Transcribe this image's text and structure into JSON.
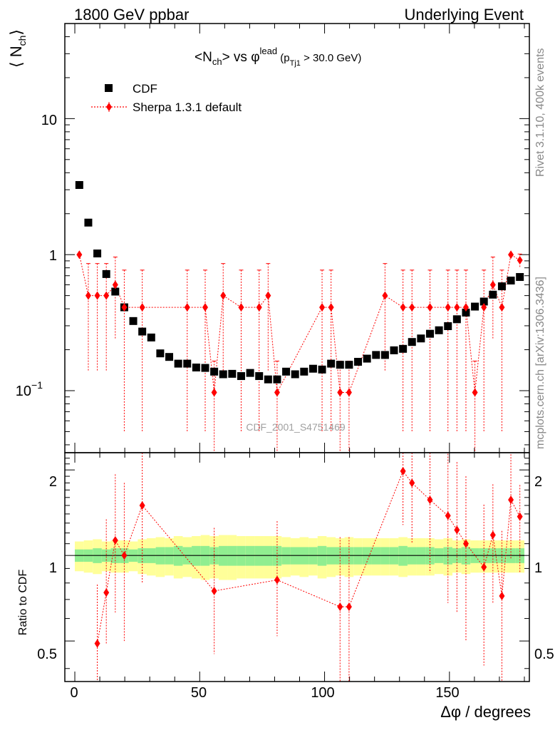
{
  "header": {
    "left": "1800 GeV ppbar",
    "right": "Underlying Event"
  },
  "side_labels": {
    "rivet": "Rivet 3.1.10,  400k events",
    "mcplots": "mcplots.cern.ch [arXiv:1306.3436]"
  },
  "watermark": "CDF_2001_S4751469",
  "chart_data": {
    "type": "scatter",
    "title_parts": {
      "lhs": "<N",
      "lhs_sub": "ch",
      "mid": "> vs φ",
      "mid_sup": "lead",
      "paren_open": " (p",
      "paren_sub": "Tj1",
      "paren_rest": " > 30.0 GeV)"
    },
    "ylabel_parts": {
      "main": "⟨ N",
      "sub": "ch",
      "close": "⟩"
    },
    "xlabel": "Δφ / degrees",
    "ratio_ylabel": "Ratio to CDF",
    "x_ticks": [
      "0",
      "50",
      "100",
      "150"
    ],
    "y_ticks": {
      "ten": "10",
      "one": "1",
      "tenth_base": "10",
      "tenth_exp": "−1"
    },
    "ratio_ticks": [
      "2",
      "1",
      "0.5"
    ],
    "xlim": [
      -4,
      182
    ],
    "ylim": [
      0.035,
      50
    ],
    "ylog": true,
    "ratio_ylim": [
      0.36,
      2.3
    ],
    "ratio_ylog": true,
    "bin_width": 3.6,
    "legend": [
      "CDF",
      "Sherpa 1.3.1 default"
    ],
    "legend_position": "top-left",
    "colors": {
      "cdf": "#000000",
      "mc": "#ff0000",
      "band_inner": "#90ee90",
      "band_outer": "#ffff99"
    },
    "cdf": {
      "x": [
        1.8,
        5.4,
        9.0,
        12.6,
        16.2,
        19.8,
        23.4,
        27.0,
        30.6,
        34.2,
        37.8,
        41.4,
        45.0,
        48.6,
        52.2,
        55.8,
        59.4,
        63.0,
        66.6,
        70.2,
        73.8,
        77.4,
        81.0,
        84.6,
        88.2,
        91.8,
        95.4,
        99.0,
        102.6,
        106.2,
        109.8,
        113.4,
        117.0,
        120.6,
        124.2,
        127.8,
        131.4,
        135.0,
        138.6,
        142.2,
        145.8,
        149.4,
        153.0,
        156.6,
        160.2,
        163.8,
        167.4,
        171.0,
        174.6,
        178.2
      ],
      "y": [
        3.25,
        1.72,
        1.02,
        0.72,
        0.535,
        0.41,
        0.325,
        0.272,
        0.246,
        0.188,
        0.177,
        0.158,
        0.158,
        0.148,
        0.147,
        0.138,
        0.132,
        0.133,
        0.128,
        0.135,
        0.128,
        0.121,
        0.121,
        0.138,
        0.132,
        0.138,
        0.145,
        0.143,
        0.158,
        0.155,
        0.155,
        0.163,
        0.172,
        0.183,
        0.183,
        0.198,
        0.203,
        0.228,
        0.242,
        0.262,
        0.278,
        0.298,
        0.335,
        0.375,
        0.415,
        0.452,
        0.508,
        0.585,
        0.645,
        0.685
      ]
    },
    "sherpa": {
      "x": [
        1.8,
        5.4,
        9.0,
        12.6,
        16.2,
        19.8,
        27.0,
        45.0,
        52.2,
        55.8,
        59.4,
        66.6,
        73.8,
        77.4,
        81.0,
        99.0,
        102.6,
        106.2,
        109.8,
        124.2,
        131.4,
        135.0,
        142.2,
        149.4,
        153.0,
        156.6,
        160.2,
        163.8,
        167.4,
        171.0,
        174.6,
        178.2
      ],
      "y": [
        1.0,
        0.5,
        0.5,
        0.5,
        0.6,
        0.41,
        0.41,
        0.41,
        0.41,
        0.097,
        0.5,
        0.41,
        0.41,
        0.5,
        0.097,
        0.41,
        0.41,
        0.097,
        0.097,
        0.5,
        0.41,
        0.41,
        0.41,
        0.41,
        0.41,
        0.41,
        0.097,
        0.41,
        0.6,
        0.41,
        1.0,
        0.91
      ],
      "err_lo": [
        0,
        0.36,
        0.36,
        0.36,
        0.36,
        0.36,
        0.36,
        0.36,
        0.36,
        0.068,
        0.36,
        0.36,
        0.36,
        0.36,
        0.068,
        0.36,
        0.36,
        0.068,
        0.068,
        0.36,
        0.36,
        0.36,
        0.36,
        0.36,
        0.36,
        0.36,
        0.068,
        0.36,
        0.36,
        0.36,
        0,
        0.1
      ],
      "err_hi": [
        0,
        0.36,
        0.36,
        0.36,
        0.36,
        0.36,
        0.36,
        0.36,
        0.36,
        0.068,
        0.36,
        0.36,
        0.36,
        0.36,
        0.068,
        0.36,
        0.36,
        0.068,
        0.068,
        0.36,
        0.36,
        0.36,
        0.36,
        0.36,
        0.36,
        0.36,
        0.068,
        0.36,
        0.36,
        0.36,
        0,
        0.1
      ]
    },
    "ratio": {
      "x": [
        9.0,
        12.6,
        16.2,
        19.8,
        27.0,
        55.8,
        81.0,
        106.2,
        109.8,
        131.4,
        135.0,
        142.2,
        149.4,
        153.0,
        156.6,
        163.8,
        167.4,
        171.0,
        174.6,
        178.2
      ],
      "y": [
        0.49,
        0.74,
        1.13,
        1.0,
        1.5,
        0.75,
        0.82,
        0.66,
        0.66,
        1.98,
        1.8,
        1.57,
        1.38,
        1.23,
        1.1,
        0.91,
        1.18,
        0.72,
        1.57,
        1.37
      ],
      "err_lo": [
        0.15,
        0.25,
        0.5,
        0.5,
        0.7,
        0.3,
        0.3,
        0.3,
        0.3,
        0.7,
        0.7,
        0.7,
        0.7,
        0.6,
        0.6,
        0.5,
        0.5,
        0.4,
        0.6,
        0.5
      ],
      "err_hi": [
        0.3,
        0.6,
        0.8,
        0.8,
        1.0,
        0.5,
        0.5,
        0.5,
        0.5,
        1.0,
        1.0,
        1.0,
        0.9,
        0.9,
        0.8,
        0.6,
        0.6,
        0.5,
        0.7,
        0.4
      ]
    },
    "ratio_band_inner": [
      0.05,
      0.05,
      0.06,
      0.05,
      0.06,
      0.06,
      0.05,
      0.06,
      0.06,
      0.07,
      0.07,
      0.08,
      0.07,
      0.08,
      0.08,
      0.07,
      0.08,
      0.08,
      0.08,
      0.08,
      0.08,
      0.08,
      0.08,
      0.07,
      0.07,
      0.07,
      0.07,
      0.08,
      0.07,
      0.07,
      0.07,
      0.07,
      0.07,
      0.07,
      0.07,
      0.07,
      0.08,
      0.07,
      0.07,
      0.07,
      0.06,
      0.07,
      0.06,
      0.07,
      0.06,
      0.06,
      0.06,
      0.06,
      0.06,
      0.06
    ],
    "ratio_band_outer": [
      0.12,
      0.13,
      0.14,
      0.12,
      0.13,
      0.13,
      0.12,
      0.14,
      0.15,
      0.16,
      0.15,
      0.17,
      0.16,
      0.17,
      0.18,
      0.17,
      0.18,
      0.18,
      0.17,
      0.17,
      0.17,
      0.17,
      0.17,
      0.16,
      0.15,
      0.16,
      0.15,
      0.17,
      0.16,
      0.15,
      0.16,
      0.15,
      0.15,
      0.15,
      0.15,
      0.15,
      0.16,
      0.15,
      0.15,
      0.15,
      0.14,
      0.15,
      0.13,
      0.14,
      0.13,
      0.13,
      0.13,
      0.13,
      0.13,
      0.13
    ]
  }
}
